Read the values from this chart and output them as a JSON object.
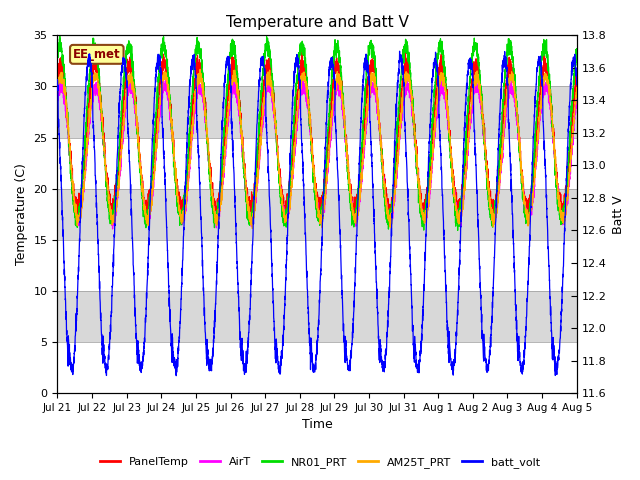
{
  "title": "Temperature and Batt V",
  "ylabel_left": "Temperature (C)",
  "ylabel_right": "Batt V",
  "xlabel": "Time",
  "ylim_left": [
    0,
    35
  ],
  "ylim_right": [
    11.6,
    13.8
  ],
  "yticks_left": [
    0,
    5,
    10,
    15,
    20,
    25,
    30,
    35
  ],
  "yticks_right": [
    11.6,
    11.8,
    12.0,
    12.2,
    12.4,
    12.6,
    12.8,
    13.0,
    13.2,
    13.4,
    13.6,
    13.8
  ],
  "xtick_labels": [
    "Jul 21",
    "Jul 22",
    "Jul 23",
    "Jul 24",
    "Jul 25",
    "Jul 26",
    "Jul 27",
    "Jul 28",
    "Jul 29",
    "Jul 30",
    "Jul 31",
    "Aug 1",
    "Aug 2",
    "Aug 3",
    "Aug 4",
    "Aug 5"
  ],
  "station_label": "EE_met",
  "colors": {
    "PanelTemp": "#ff0000",
    "AirT": "#ff00ff",
    "NR01_PRT": "#00dd00",
    "AM25T_PRT": "#ffaa00",
    "batt_volt": "#0000ff"
  },
  "legend_labels": [
    "PanelTemp",
    "AirT",
    "NR01_PRT",
    "AM25T_PRT",
    "batt_volt"
  ],
  "background_color": "#d8d8d8",
  "alternating_band_colors": [
    "#ffffff",
    "#d8d8d8"
  ],
  "num_days": 15,
  "points_per_day": 288,
  "batt_day_max": 13.65,
  "batt_day_min": 11.75
}
